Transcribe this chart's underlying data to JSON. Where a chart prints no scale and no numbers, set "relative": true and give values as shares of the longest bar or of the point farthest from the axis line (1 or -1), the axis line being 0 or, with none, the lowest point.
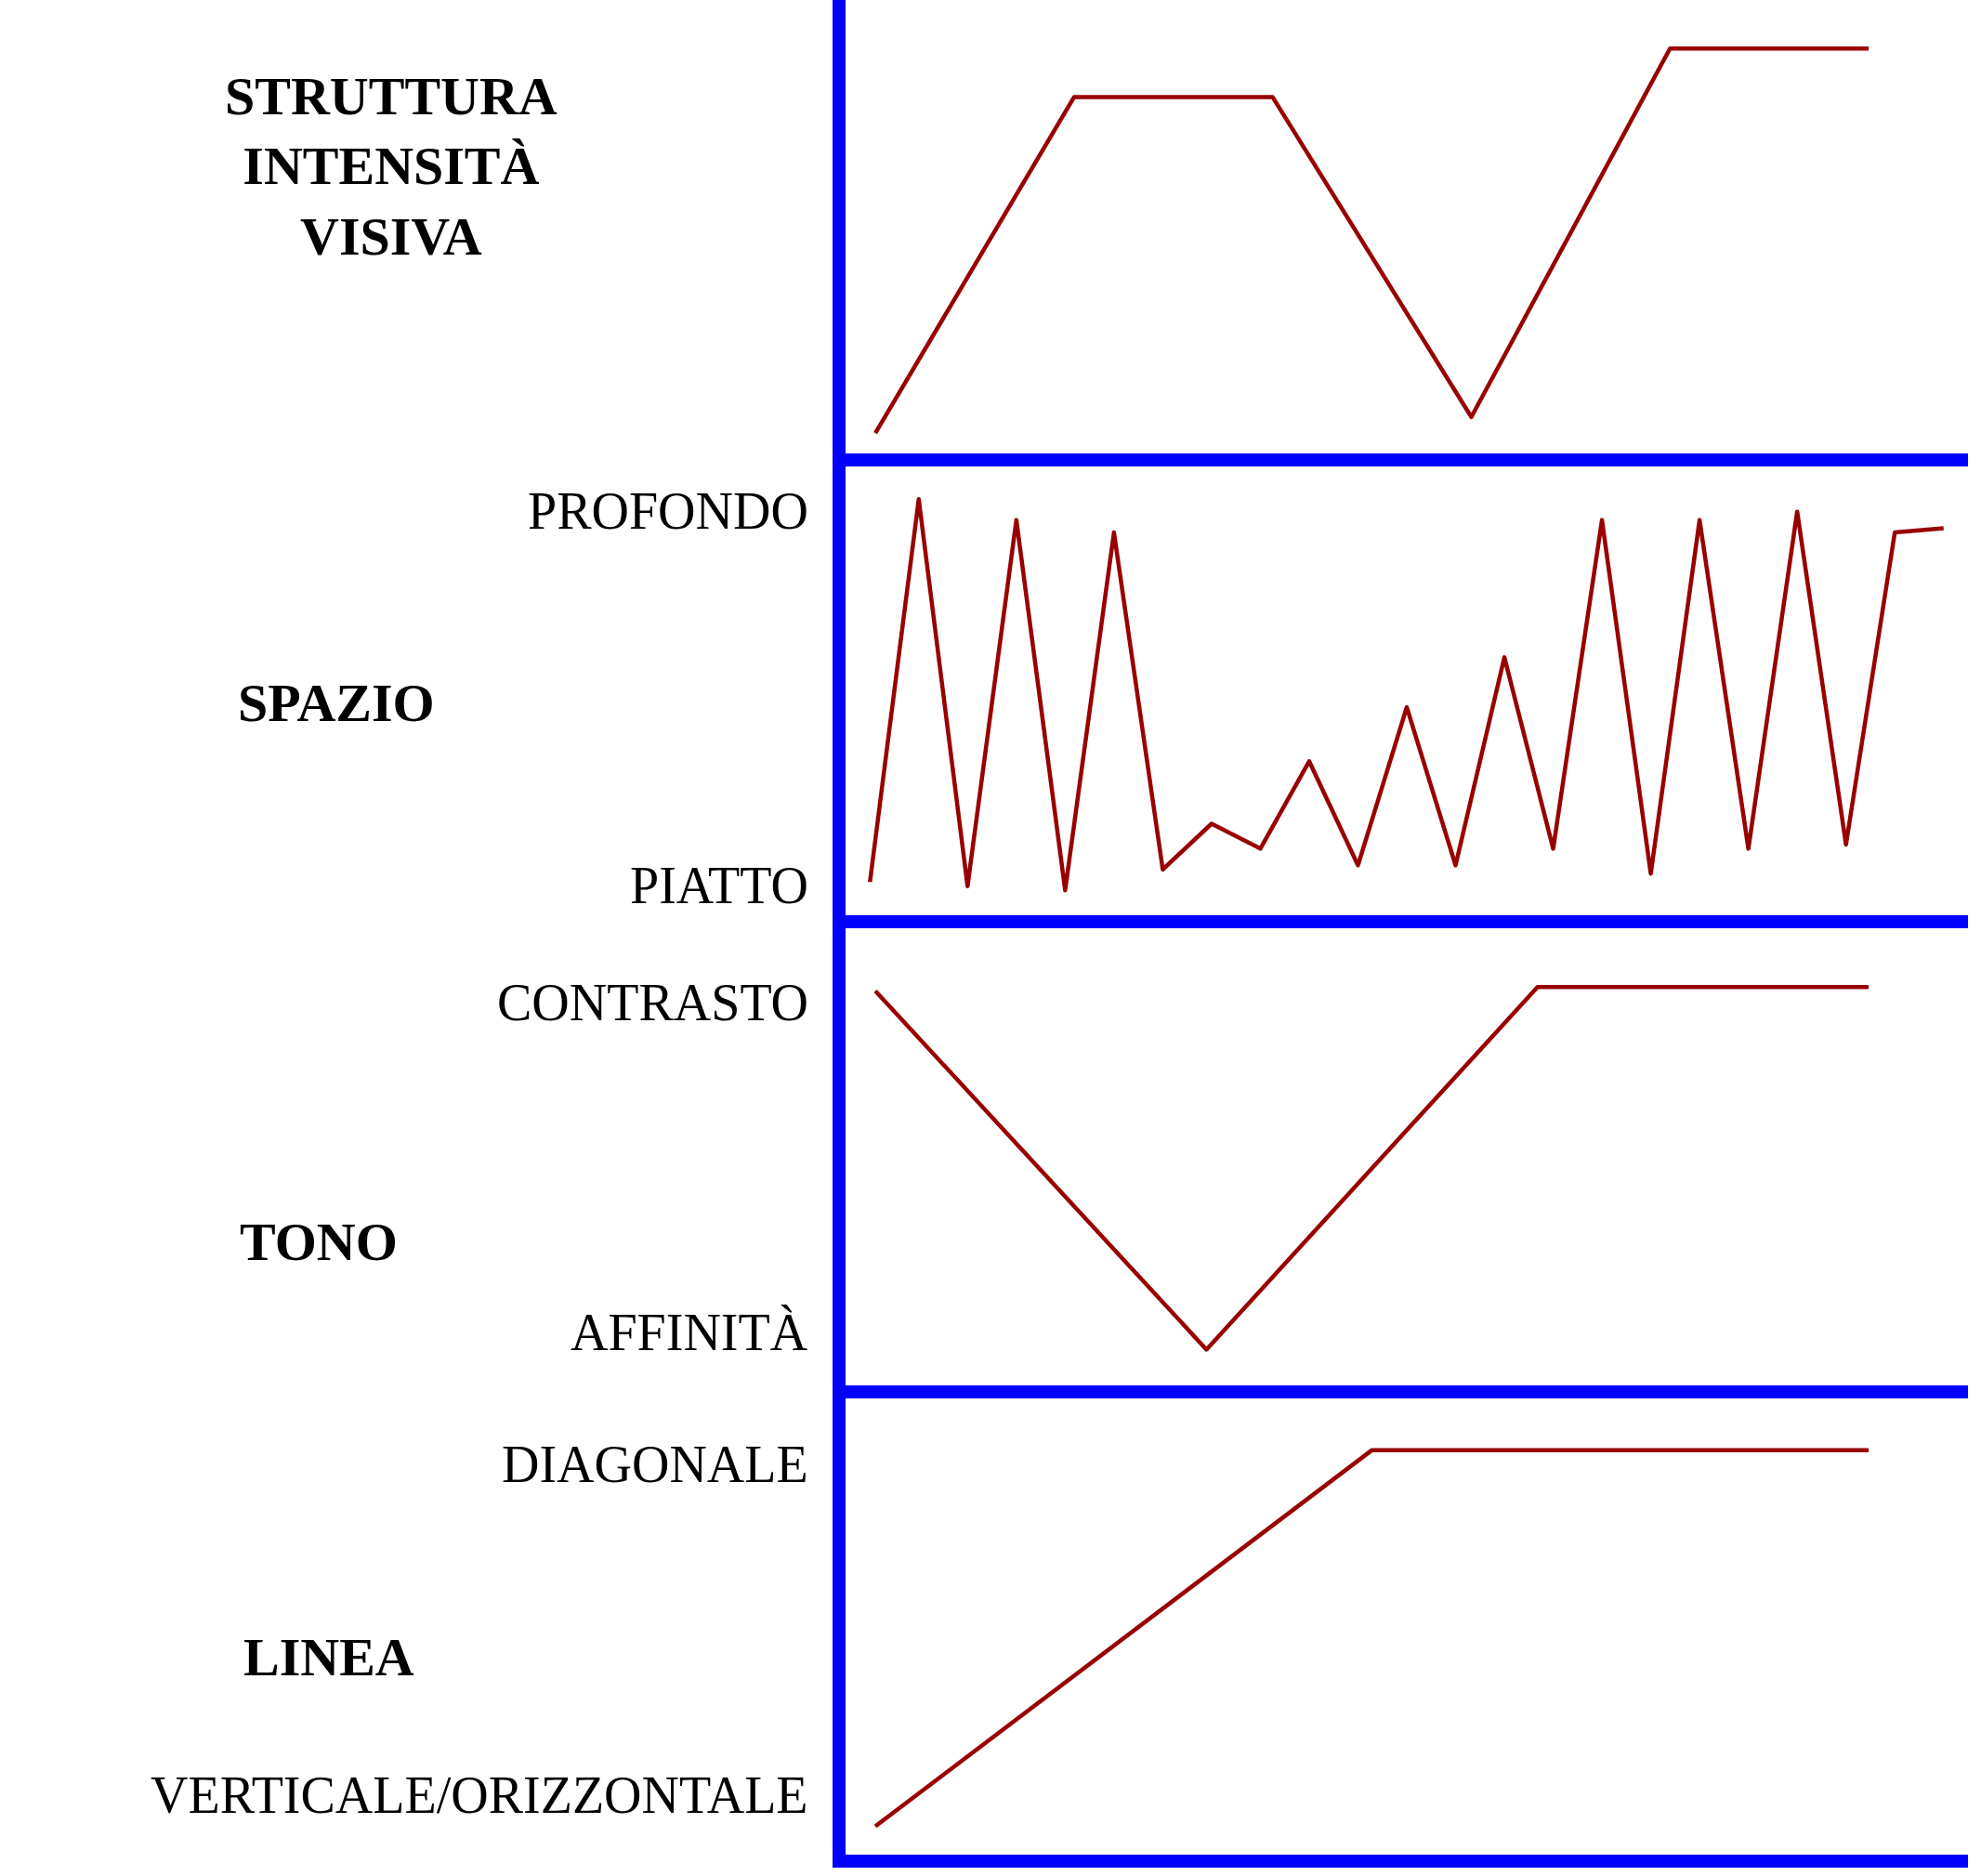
{
  "chart_data": [
    {
      "type": "line",
      "ylabel": "STRUTTURA INTENSITÀ VISIVA",
      "relative": true,
      "categories": [
        null,
        null,
        null,
        null,
        null,
        null
      ],
      "series": [
        {
          "color": "#990000",
          "values": [
            0.05,
            0.88,
            0.88,
            0.09,
            1,
            1
          ]
        }
      ]
    },
    {
      "type": "line",
      "ylabel": "SPAZIO",
      "relative": true,
      "categories": [
        null,
        null,
        null,
        null,
        null,
        null,
        null,
        null,
        null,
        null,
        null,
        null,
        null,
        null,
        null,
        null,
        null,
        null,
        null,
        null,
        null,
        null,
        null
      ],
      "series": [
        {
          "color": "#990000",
          "values": [
            0.08,
            1,
            0.07,
            0.95,
            0.06,
            0.92,
            0.11,
            0.22,
            0.16,
            0.37,
            0.12,
            0.5,
            0.12,
            0.62,
            0.16,
            0.95,
            0.1,
            0.95,
            0.16,
            0.97,
            0.17,
            0.92,
            0.93
          ]
        }
      ],
      "annotations": [
        "PROFONDO",
        "PIATTO"
      ]
    },
    {
      "type": "line",
      "ylabel": "TONO",
      "relative": true,
      "categories": [
        null,
        null,
        null,
        null
      ],
      "series": [
        {
          "color": "#990000",
          "values": [
            0.99,
            0.09,
            1,
            1
          ]
        }
      ],
      "annotations": [
        "CONTRASTO",
        "AFFINITÀ"
      ]
    },
    {
      "type": "line",
      "ylabel": "LINEA",
      "relative": true,
      "categories": [
        null,
        null,
        null
      ],
      "series": [
        {
          "color": "#990000",
          "values": [
            0.07,
            1,
            1
          ]
        }
      ],
      "annotations": [
        "DIAGONALE",
        "VERTICALE/ORIZZONTALE"
      ]
    }
  ]
}
